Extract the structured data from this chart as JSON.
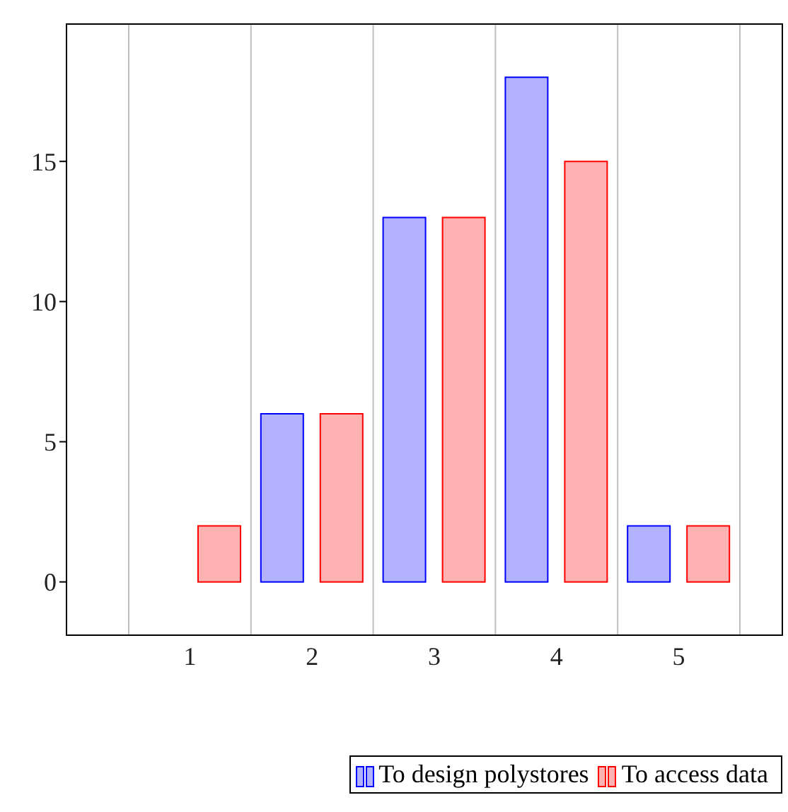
{
  "chart_data": {
    "type": "bar",
    "categories": [
      "1",
      "2",
      "3",
      "4",
      "5"
    ],
    "series": [
      {
        "name": "To design polystores",
        "color": "#0000ff",
        "values": [
          0,
          6,
          13,
          18,
          2
        ]
      },
      {
        "name": "To access data",
        "color": "#ff0000",
        "values": [
          2,
          6,
          13,
          15,
          2
        ]
      }
    ],
    "ylim": [
      -1.9,
      19.9
    ],
    "yticks": [
      0,
      5,
      10,
      15
    ],
    "grid": "x",
    "legend": "bottom"
  }
}
